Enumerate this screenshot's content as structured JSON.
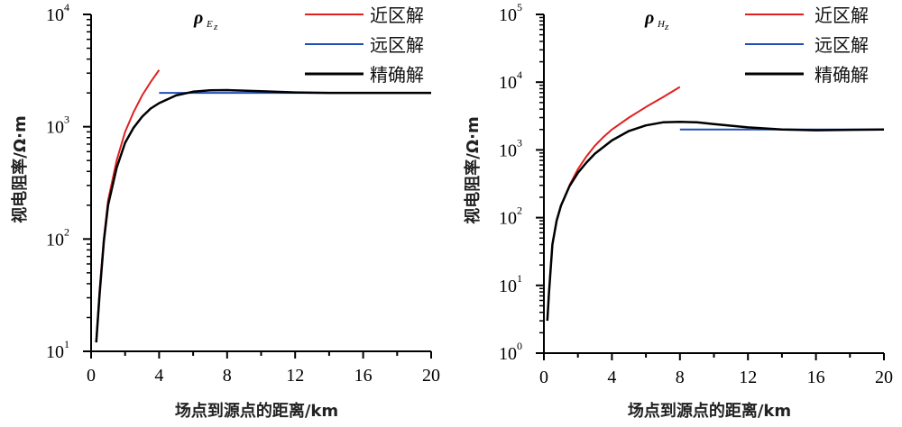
{
  "chart_data": [
    {
      "type": "line",
      "title": "ρ",
      "title_subscript": "E",
      "title_subsubscript": "z",
      "xlabel": "场点到源点的距离/km",
      "ylabel": "视电阻率/Ω·m",
      "xlim": [
        0,
        20
      ],
      "ylim_exp": [
        1,
        4
      ],
      "yscale": "log",
      "xticks": [
        "0",
        "4",
        "8",
        "12",
        "16",
        "20"
      ],
      "ytick_exponents": [
        "1",
        "2",
        "3",
        "4"
      ],
      "ytick_base": "10",
      "legend": "top-right",
      "series": [
        {
          "name": "近区解",
          "color": "#e02020",
          "x": [
            0.3,
            0.5,
            0.75,
            1,
            1.5,
            2,
            2.5,
            3,
            3.5,
            4
          ],
          "y": [
            12,
            35,
            100,
            220,
            500,
            900,
            1350,
            1900,
            2500,
            3200
          ]
        },
        {
          "name": "远区解",
          "color": "#1f4fb5",
          "x": [
            4,
            20
          ],
          "y": [
            2000,
            2000
          ]
        },
        {
          "name": "精确解",
          "color": "#000000",
          "x": [
            0.3,
            0.5,
            0.75,
            1,
            1.5,
            2,
            2.5,
            3,
            3.5,
            4,
            5,
            6,
            7,
            8,
            10,
            12,
            14,
            20
          ],
          "y": [
            12,
            32,
            95,
            200,
            430,
            720,
            980,
            1230,
            1450,
            1620,
            1900,
            2050,
            2110,
            2120,
            2070,
            2020,
            2000,
            2000
          ]
        }
      ]
    },
    {
      "type": "line",
      "title": "ρ",
      "title_subscript": "H",
      "title_subsubscript": "z",
      "xlabel": "场点到源点的距离/km",
      "ylabel": "视电阻率/Ω·m",
      "xlim": [
        0,
        20
      ],
      "ylim_exp": [
        0,
        5
      ],
      "yscale": "log",
      "xticks": [
        "0",
        "4",
        "8",
        "12",
        "16",
        "20"
      ],
      "ytick_exponents": [
        "0",
        "1",
        "2",
        "3",
        "4",
        "5"
      ],
      "ytick_base": "10",
      "legend": "top-right",
      "series": [
        {
          "name": "近区解",
          "color": "#e02020",
          "x": [
            1.5,
            2,
            2.5,
            3,
            3.5,
            4,
            5,
            6,
            7,
            8
          ],
          "y": [
            300,
            520,
            800,
            1150,
            1550,
            2000,
            3000,
            4300,
            6000,
            8500
          ]
        },
        {
          "name": "远区解",
          "color": "#1f4fb5",
          "x": [
            8,
            20
          ],
          "y": [
            2000,
            2000
          ]
        },
        {
          "name": "精确解",
          "color": "#000000",
          "x": [
            0.2,
            0.3,
            0.5,
            0.75,
            1,
            1.5,
            2,
            2.5,
            3,
            4,
            5,
            6,
            7,
            8,
            9,
            10,
            12,
            14,
            16,
            18,
            20
          ],
          "y": [
            3,
            8,
            40,
            90,
            150,
            290,
            460,
            650,
            880,
            1380,
            1900,
            2300,
            2550,
            2600,
            2550,
            2400,
            2150,
            2000,
            1950,
            1980,
            2000
          ]
        }
      ]
    }
  ]
}
